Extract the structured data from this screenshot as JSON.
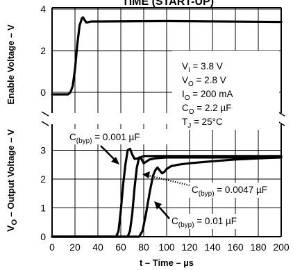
{
  "chart_data": [
    {
      "type": "line",
      "panel": "top",
      "title": "TIME (START-UP)",
      "ylabel": "Enable Voltage – V",
      "xlim": [
        0,
        200
      ],
      "ylim": [
        -1,
        5
      ],
      "y_ticks": [
        "0",
        "2",
        "4"
      ],
      "y_axis_break": true,
      "grid": true,
      "series": [
        {
          "x": [
            0,
            14,
            16,
            18,
            20,
            22,
            24,
            26,
            27,
            28,
            30,
            34,
            40,
            100,
            200
          ],
          "y": [
            -0.1,
            -0.1,
            0.0,
            0.3,
            1.1,
            2.3,
            3.2,
            3.55,
            3.6,
            3.5,
            3.35,
            3.4,
            3.4,
            3.42,
            3.38
          ]
        }
      ],
      "conditions": {
        "vi": "V_I = 3.8 V",
        "vo": "V_O = 2.8 V",
        "io": "I_O = 200 mA",
        "co": "C_O = 2.2 µF",
        "tj": "T_J = 25°C"
      }
    },
    {
      "type": "line",
      "panel": "bottom",
      "xlabel": "t – Time – µs",
      "ylabel": "V_O – Output Voltage – V",
      "xlim": [
        0,
        200
      ],
      "ylim": [
        0,
        3.5
      ],
      "x_ticks": [
        "0",
        "20",
        "40",
        "60",
        "80",
        "100",
        "120",
        "140",
        "160",
        "180",
        "200"
      ],
      "y_ticks": [
        "0",
        "1",
        "2",
        "3"
      ],
      "y_axis_break": true,
      "grid": true,
      "series": [
        {
          "name": "C(byp) = 0.001 µF",
          "x": [
            0,
            56,
            58,
            60,
            62,
            64,
            66,
            68,
            70,
            72,
            75,
            80,
            100,
            200
          ],
          "y": [
            0,
            0,
            0.2,
            0.9,
            1.8,
            2.5,
            3.0,
            3.05,
            2.85,
            2.7,
            2.72,
            2.8,
            2.8,
            2.8
          ]
        },
        {
          "name": "C(byp) = 0.0047 µF",
          "x": [
            0,
            66,
            68,
            70,
            72,
            74,
            76,
            78,
            80,
            82,
            85,
            90,
            100,
            200
          ],
          "y": [
            0,
            0,
            0.2,
            0.8,
            1.7,
            2.4,
            2.75,
            2.7,
            2.55,
            2.6,
            2.68,
            2.72,
            2.75,
            2.75
          ]
        },
        {
          "name": "C(byp) = 0.01 µF",
          "x": [
            0,
            76,
            79,
            82,
            85,
            88,
            90,
            92,
            94,
            96,
            98,
            100,
            104,
            110,
            120,
            140,
            160,
            180,
            200
          ],
          "y": [
            0,
            0,
            0.2,
            0.8,
            1.5,
            2.1,
            2.3,
            2.4,
            2.3,
            2.2,
            2.25,
            2.35,
            2.45,
            2.5,
            2.55,
            2.62,
            2.68,
            2.72,
            2.75
          ]
        }
      ]
    }
  ]
}
